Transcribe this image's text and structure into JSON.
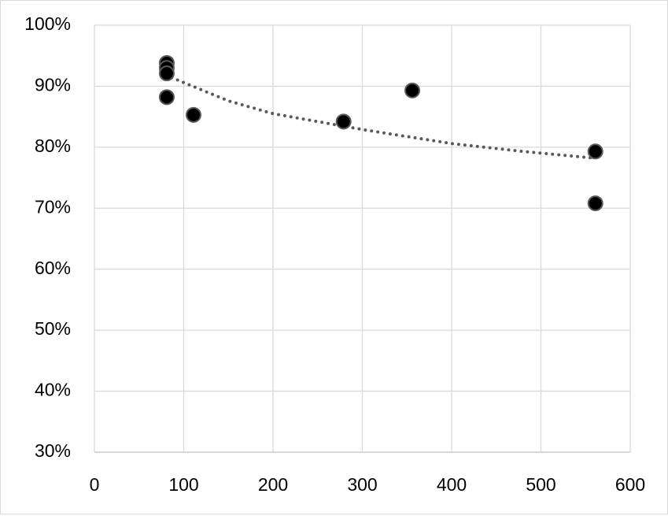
{
  "chart_data": {
    "type": "scatter",
    "series": [
      {
        "color": "#000000",
        "x": [
          81,
          81,
          81,
          81,
          111,
          279,
          356,
          561,
          561
        ],
        "values": [
          93.8,
          93.0,
          92.1,
          88.2,
          85.3,
          84.2,
          89.3,
          79.3,
          70.8
        ]
      }
    ],
    "trendline": {
      "color": "#595959",
      "x": [
        80,
        150,
        200,
        300,
        400,
        480,
        560
      ],
      "values": [
        91.8,
        87.6,
        85.5,
        82.9,
        80.6,
        79.3,
        78.2
      ]
    },
    "xlim": [
      0,
      600
    ],
    "xticks": [
      0,
      100,
      200,
      300,
      400,
      500,
      600
    ],
    "ylim": [
      30,
      100
    ],
    "yticks": [
      {
        "value": 30,
        "label": "30%"
      },
      {
        "value": 40,
        "label": "40%"
      },
      {
        "value": 50,
        "label": "50%"
      },
      {
        "value": 60,
        "label": "60%"
      },
      {
        "value": 70,
        "label": "70%"
      },
      {
        "value": 80,
        "label": "80%"
      },
      {
        "value": 90,
        "label": "90%"
      },
      {
        "value": 100,
        "label": "100%"
      }
    ],
    "grid": true
  }
}
